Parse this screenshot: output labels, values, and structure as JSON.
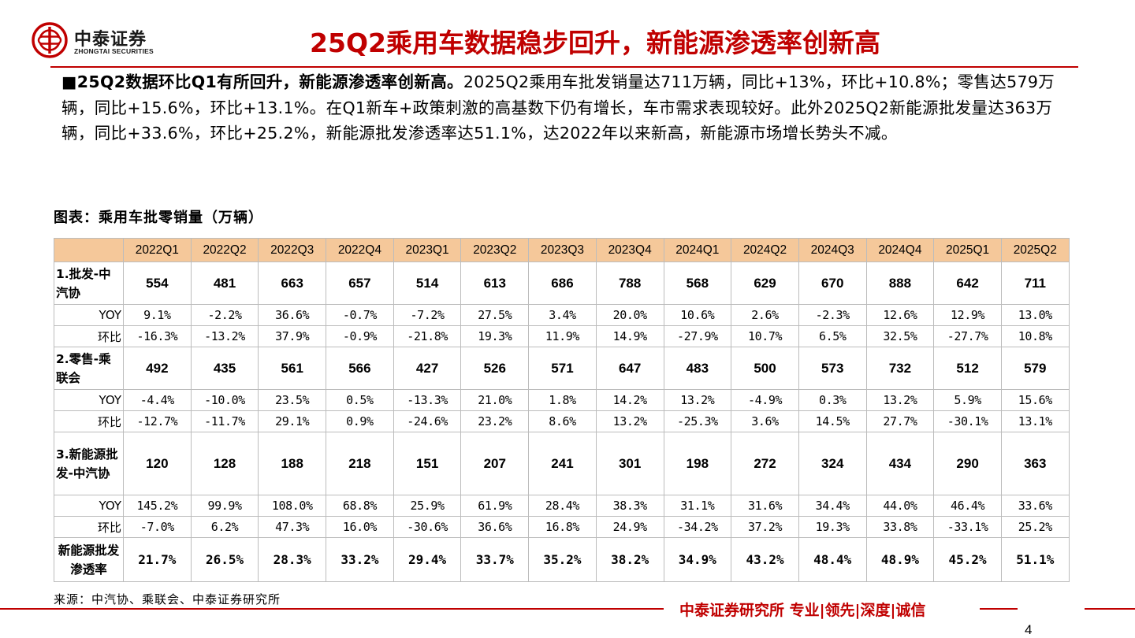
{
  "brand": {
    "name_cn": "中泰证券",
    "name_en": "ZHONGTAI SECURITIES",
    "logo_icon": "zhongtai-logo-icon",
    "color": "#c00000"
  },
  "page_title": "25Q2乘用车数据稳步回升，新能源渗透率创新高",
  "summary": {
    "bullet": "■",
    "lead": "25Q2数据环比Q1有所回升，新能源渗透率创新高。",
    "body": "2025Q2乘用车批发销量达711万辆，同比+13%，环比+10.8%；零售达579万辆，同比+15.6%，环比+13.1%。在Q1新车+政策刺激的高基数下仍有增长，车市需求表现较好。此外2025Q2新能源批发量达363万辆，同比+33.6%，环比+25.2%，新能源批发渗透率达51.1%，达2022年以来新高，新能源市场增长势头不减。"
  },
  "figure_title": "图表：乘用车批零销量（万辆）",
  "table": {
    "header_color": "#f5c89a",
    "columns": [
      "2022Q1",
      "2022Q2",
      "2022Q3",
      "2022Q4",
      "2023Q1",
      "2023Q2",
      "2023Q3",
      "2023Q4",
      "2024Q1",
      "2024Q2",
      "2024Q3",
      "2024Q4",
      "2025Q1",
      "2025Q2"
    ],
    "rows": [
      {
        "kind": "big",
        "label": "1.批发-中汽协",
        "values": [
          "554",
          "481",
          "663",
          "657",
          "514",
          "613",
          "686",
          "788",
          "568",
          "629",
          "670",
          "888",
          "642",
          "711"
        ]
      },
      {
        "kind": "sm",
        "label": "YOY",
        "values": [
          "9.1%",
          "-2.2%",
          "36.6%",
          "-0.7%",
          "-7.2%",
          "27.5%",
          "3.4%",
          "20.0%",
          "10.6%",
          "2.6%",
          "-2.3%",
          "12.6%",
          "12.9%",
          "13.0%"
        ]
      },
      {
        "kind": "sm",
        "label": "环比",
        "values": [
          "-16.3%",
          "-13.2%",
          "37.9%",
          "-0.9%",
          "-21.8%",
          "19.3%",
          "11.9%",
          "14.9%",
          "-27.9%",
          "10.7%",
          "6.5%",
          "32.5%",
          "-27.7%",
          "10.8%"
        ]
      },
      {
        "kind": "big",
        "label": "2.零售-乘联会",
        "values": [
          "492",
          "435",
          "561",
          "566",
          "427",
          "526",
          "571",
          "647",
          "483",
          "500",
          "573",
          "732",
          "512",
          "579"
        ]
      },
      {
        "kind": "sm",
        "label": "YOY",
        "values": [
          "-4.4%",
          "-10.0%",
          "23.5%",
          "0.5%",
          "-13.3%",
          "21.0%",
          "1.8%",
          "14.2%",
          "13.2%",
          "-4.9%",
          "0.3%",
          "13.2%",
          "5.9%",
          "15.6%"
        ]
      },
      {
        "kind": "sm",
        "label": "环比",
        "values": [
          "-12.7%",
          "-11.7%",
          "29.1%",
          "0.9%",
          "-24.6%",
          "23.2%",
          "8.6%",
          "13.2%",
          "-25.3%",
          "3.6%",
          "14.5%",
          "27.7%",
          "-30.1%",
          "13.1%"
        ]
      },
      {
        "kind": "big",
        "label": "3.新能源批发-中汽协",
        "values": [
          "120",
          "128",
          "188",
          "218",
          "151",
          "207",
          "241",
          "301",
          "198",
          "272",
          "324",
          "434",
          "290",
          "363"
        ]
      },
      {
        "kind": "sm",
        "label": "YOY",
        "values": [
          "145.2%",
          "99.9%",
          "108.0%",
          "68.8%",
          "25.9%",
          "61.9%",
          "28.4%",
          "38.3%",
          "31.1%",
          "31.6%",
          "34.4%",
          "44.0%",
          "46.4%",
          "33.6%"
        ]
      },
      {
        "kind": "sm",
        "label": "环比",
        "values": [
          "-7.0%",
          "6.2%",
          "47.3%",
          "16.0%",
          "-30.6%",
          "36.6%",
          "16.8%",
          "24.9%",
          "-34.2%",
          "37.2%",
          "19.3%",
          "33.8%",
          "-33.1%",
          "25.2%"
        ]
      },
      {
        "kind": "pen",
        "label": "新能源批发渗透率",
        "values": [
          "21.7%",
          "26.5%",
          "28.3%",
          "33.2%",
          "29.4%",
          "33.7%",
          "35.2%",
          "38.2%",
          "34.9%",
          "43.2%",
          "48.4%",
          "48.9%",
          "45.2%",
          "51.1%"
        ]
      }
    ]
  },
  "source": "来源：中汽协、乘联会、中泰证券研究所",
  "footer": {
    "slogan": "中泰证券研究所 专业|领先|深度|诚信",
    "page_number": "4"
  }
}
